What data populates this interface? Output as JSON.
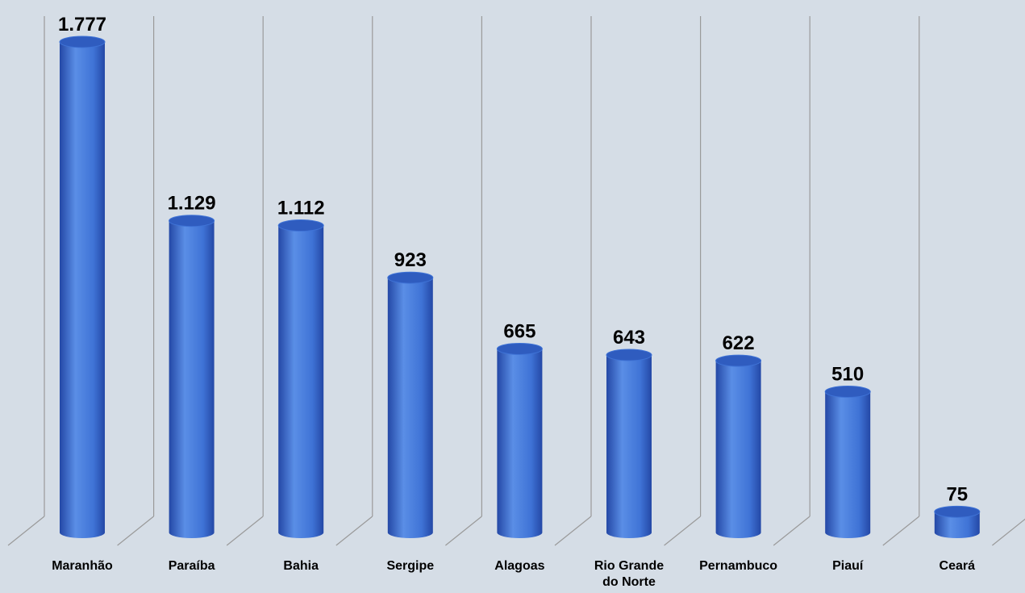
{
  "chart_data": {
    "type": "bar",
    "style": "3d-cylinder",
    "categories": [
      "Maranhão",
      "Paraíba",
      "Bahia",
      "Sergipe",
      "Alagoas",
      "Rio Grande do Norte",
      "Pernambuco",
      "Piauí",
      "Ceará"
    ],
    "values": [
      1777,
      1129,
      1112,
      923,
      665,
      643,
      622,
      510,
      75
    ],
    "data_labels": [
      "1.777",
      "1.129",
      "1.112",
      "923",
      "665",
      "643",
      "622",
      "510",
      "75"
    ],
    "category_label_lines": [
      [
        "Maranhão"
      ],
      [
        "Paraíba"
      ],
      [
        "Bahia"
      ],
      [
        "Sergipe"
      ],
      [
        "Alagoas"
      ],
      [
        "Rio Grande",
        "do Norte"
      ],
      [
        "Pernambuco"
      ],
      [
        "Piauí"
      ],
      [
        "Ceará"
      ]
    ],
    "title": "",
    "xlabel": "",
    "ylabel": "",
    "ylim": [
      0,
      1800
    ],
    "grid": "vertical category separators",
    "legend": "none",
    "colors": {
      "background": "#d5dde6",
      "bar_light": "#5a8ee6",
      "bar_mid": "#3f73d6",
      "bar_dark": "#2448a6",
      "bar_top": "#2f5cbf",
      "grid": "#9a9a9a"
    }
  }
}
